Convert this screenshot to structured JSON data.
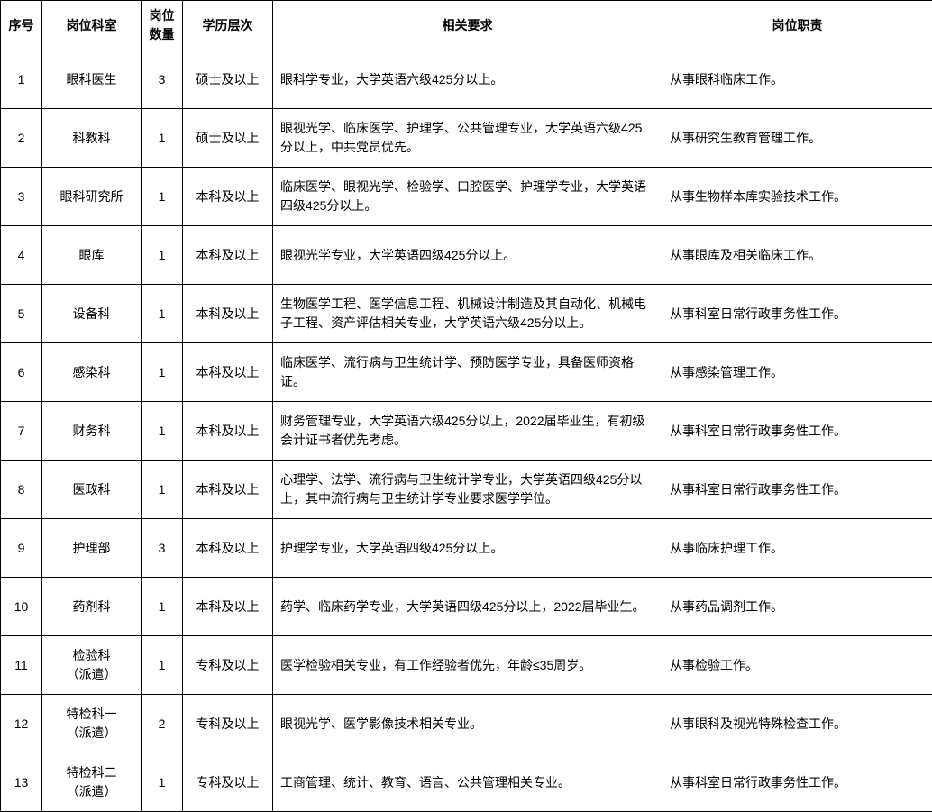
{
  "table": {
    "columns": [
      "序号",
      "岗位科室",
      "岗位数量",
      "学历层次",
      "相关要求",
      "岗位职责"
    ],
    "col_align": [
      "center",
      "center",
      "center",
      "center",
      "left",
      "left"
    ],
    "header_align": "center",
    "border_color": "#000000",
    "background_color": "#ffffff",
    "text_color": "#000000",
    "font_size": 14,
    "header_font_weight": "bold",
    "rows": [
      {
        "no": "1",
        "dept": "眼科医生",
        "count": "3",
        "edu": "硕士及以上",
        "req": "眼科学专业，大学英语六级425分以上。",
        "duty": "从事眼科临床工作。"
      },
      {
        "no": "2",
        "dept": "科教科",
        "count": "1",
        "edu": "硕士及以上",
        "req": "眼视光学、临床医学、护理学、公共管理专业，大学英语六级425分以上，中共党员优先。",
        "duty": "从事研究生教育管理工作。"
      },
      {
        "no": "3",
        "dept": "眼科研究所",
        "count": "1",
        "edu": "本科及以上",
        "req": "临床医学、眼视光学、检验学、口腔医学、护理学专业，大学英语四级425分以上。",
        "duty": "从事生物样本库实验技术工作。"
      },
      {
        "no": "4",
        "dept": "眼库",
        "count": "1",
        "edu": "本科及以上",
        "req": "眼视光学专业，大学英语四级425分以上。",
        "duty": "从事眼库及相关临床工作。"
      },
      {
        "no": "5",
        "dept": "设备科",
        "count": "1",
        "edu": "本科及以上",
        "req": "生物医学工程、医学信息工程、机械设计制造及其自动化、机械电子工程、资产评估相关专业，大学英语六级425分以上。",
        "duty": "从事科室日常行政事务性工作。"
      },
      {
        "no": "6",
        "dept": "感染科",
        "count": "1",
        "edu": "本科及以上",
        "req": "临床医学、流行病与卫生统计学、预防医学专业，具备医师资格证。",
        "duty": "从事感染管理工作。"
      },
      {
        "no": "7",
        "dept": "财务科",
        "count": "1",
        "edu": "本科及以上",
        "req": "财务管理专业，大学英语六级425分以上，2022届毕业生，有初级会计证书者优先考虑。",
        "duty": "从事科室日常行政事务性工作。"
      },
      {
        "no": "8",
        "dept": "医政科",
        "count": "1",
        "edu": "本科及以上",
        "req": "心理学、法学、流行病与卫生统计学专业，大学英语四级425分以上，其中流行病与卫生统计学专业要求医学学位。",
        "duty": "从事科室日常行政事务性工作。"
      },
      {
        "no": "9",
        "dept": "护理部",
        "count": "3",
        "edu": "本科及以上",
        "req": "护理学专业，大学英语四级425分以上。",
        "duty": "从事临床护理工作。"
      },
      {
        "no": "10",
        "dept": "药剂科",
        "count": "1",
        "edu": "本科及以上",
        "req": "药学、临床药学专业，大学英语四级425分以上，2022届毕业生。",
        "duty": "从事药品调剂工作。"
      },
      {
        "no": "11",
        "dept": "检验科\n（派遣）",
        "count": "1",
        "edu": "专科及以上",
        "req": "医学检验相关专业，有工作经验者优先，年龄≤35周岁。",
        "duty": "从事检验工作。"
      },
      {
        "no": "12",
        "dept": "特检科一\n（派遣）",
        "count": "2",
        "edu": "专科及以上",
        "req": "眼视光学、医学影像技术相关专业。",
        "duty": "从事眼科及视光特殊检查工作。"
      },
      {
        "no": "13",
        "dept": "特检科二\n（派遣）",
        "count": "1",
        "edu": "专科及以上",
        "req": "工商管理、统计、教育、语言、公共管理相关专业。",
        "duty": "从事科室日常行政事务性工作。"
      }
    ]
  }
}
